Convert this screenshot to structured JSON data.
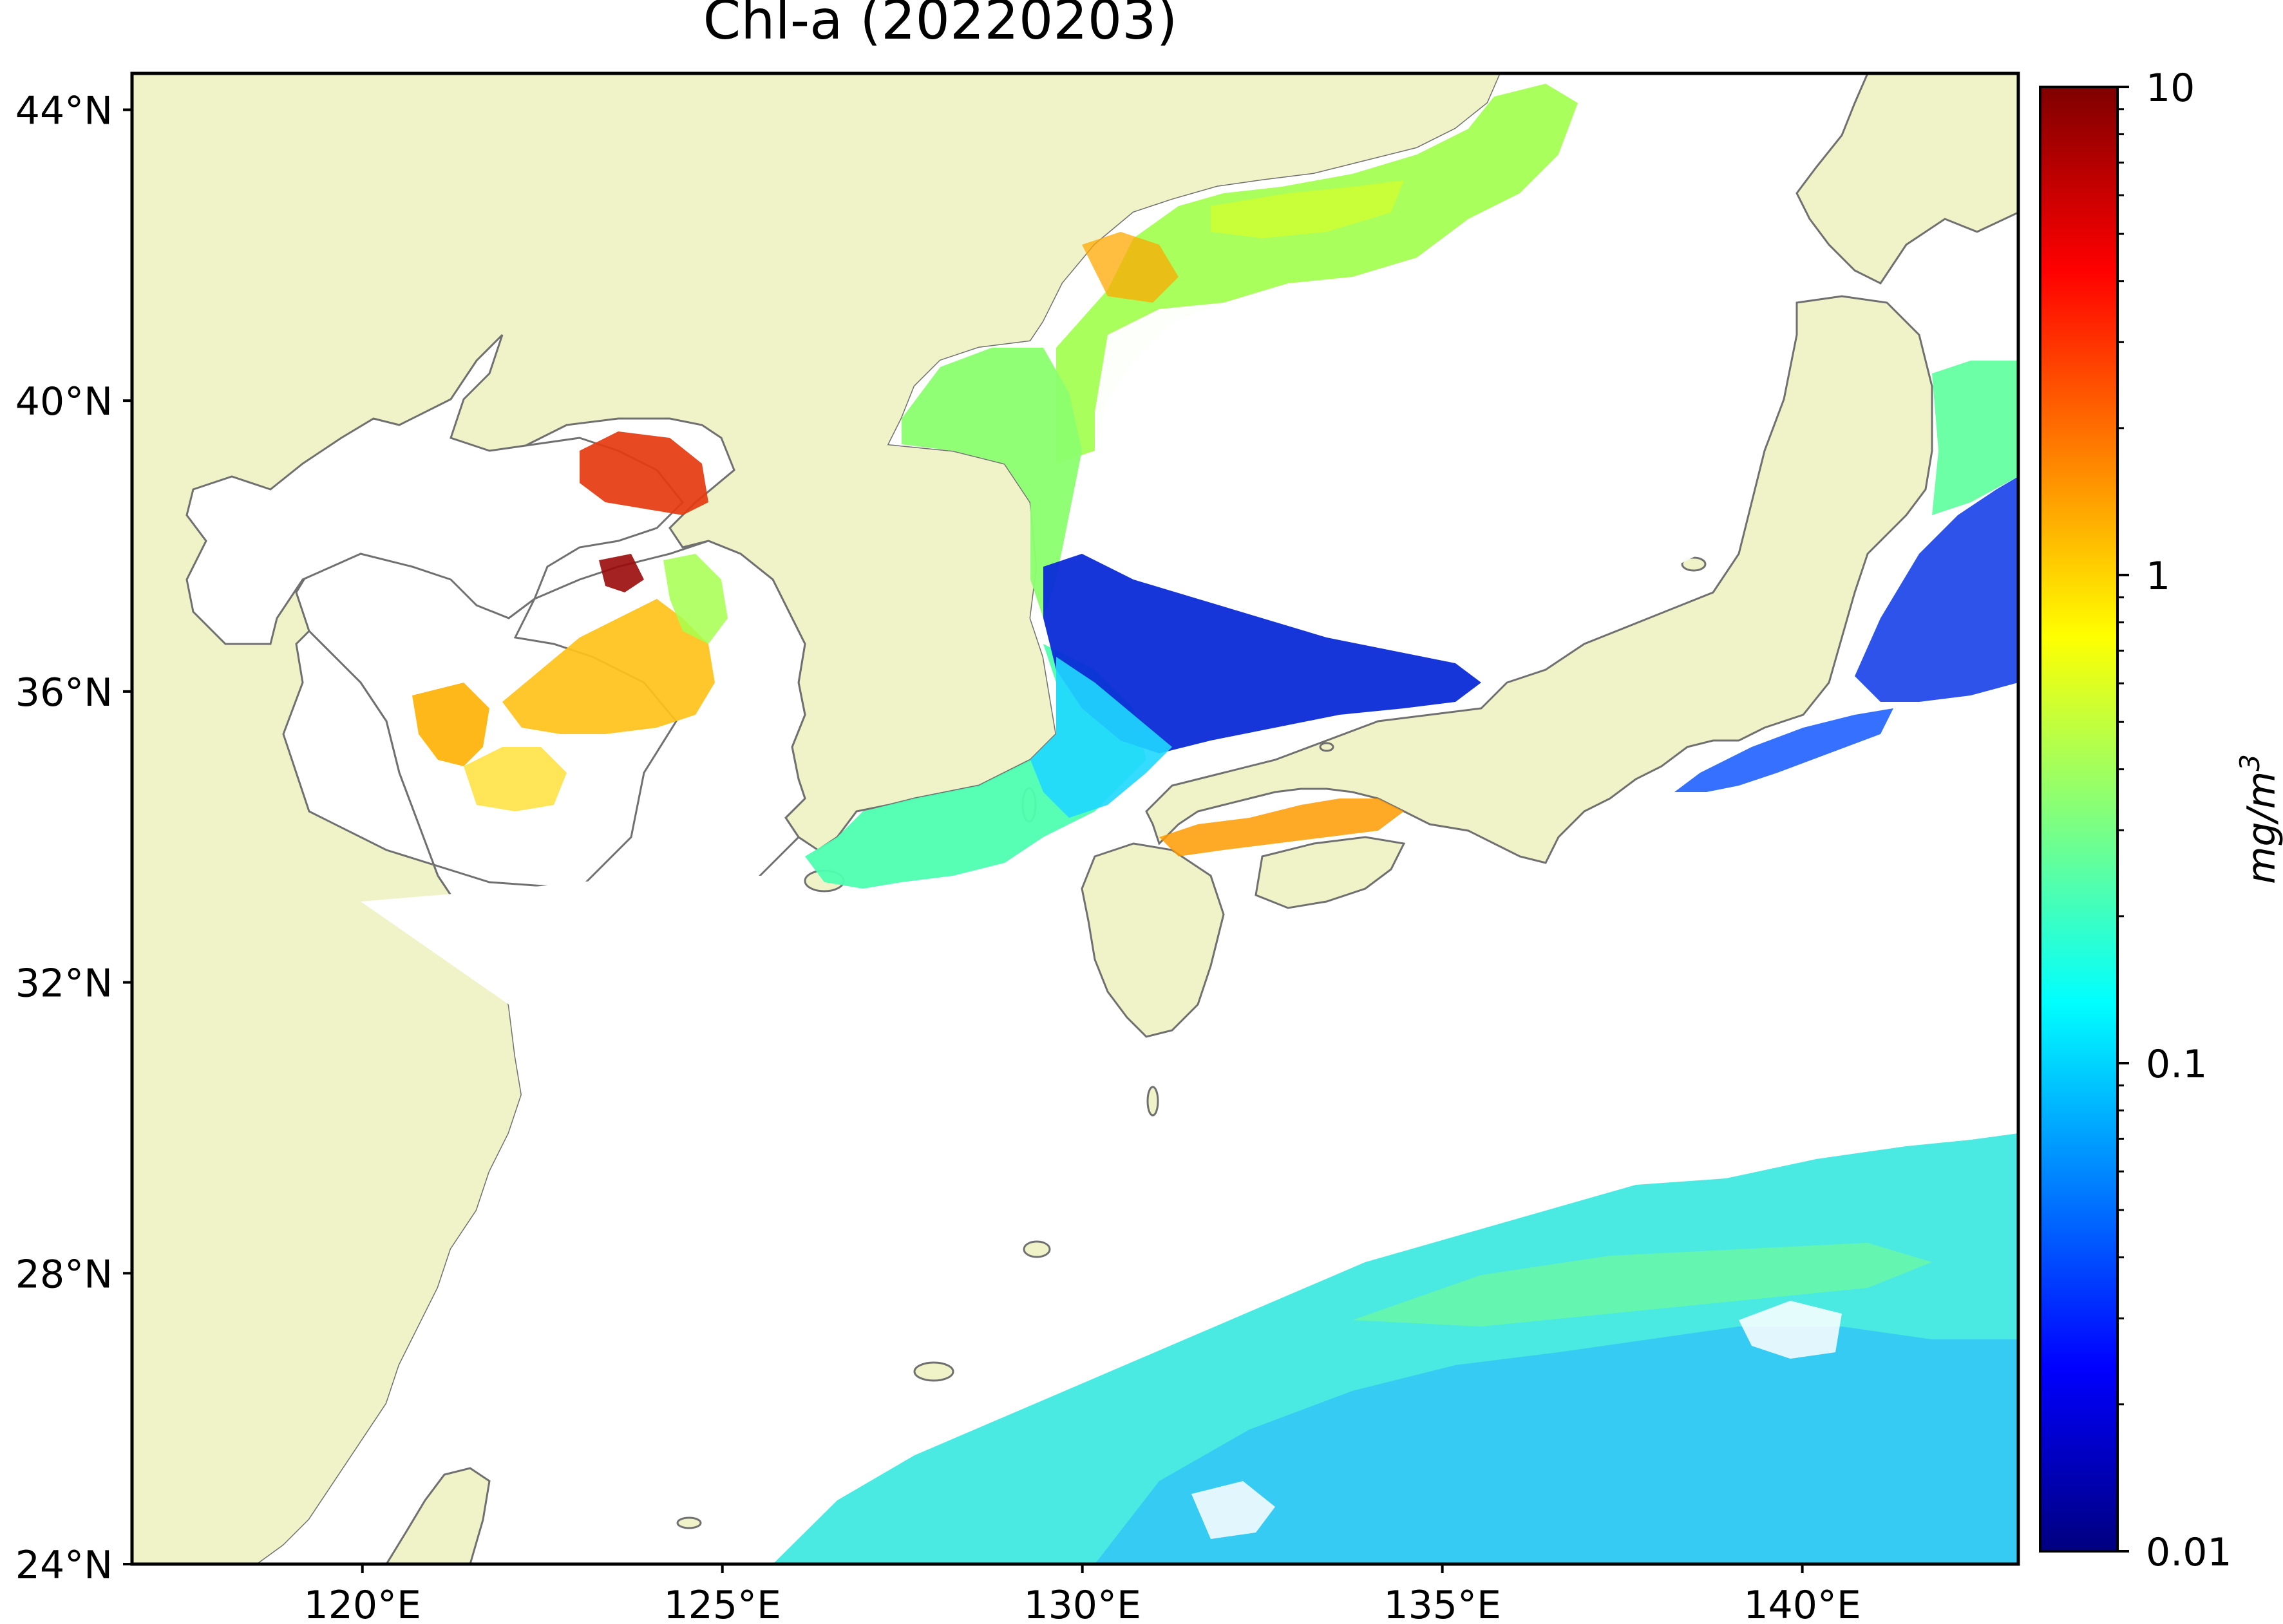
{
  "title": "Chl-a (20220203)",
  "map": {
    "lon_range": [
      116.8,
      143.0
    ],
    "lat_range": [
      24.0,
      44.5
    ],
    "lat_ticks": [
      {
        "value": 44,
        "label": "44°N"
      },
      {
        "value": 40,
        "label": "40°N"
      },
      {
        "value": 36,
        "label": "36°N"
      },
      {
        "value": 32,
        "label": "32°N"
      },
      {
        "value": 28,
        "label": "28°N"
      },
      {
        "value": 24,
        "label": "24°N"
      }
    ],
    "lon_ticks": [
      {
        "value": 120,
        "label": "120°E"
      },
      {
        "value": 125,
        "label": "125°E"
      },
      {
        "value": 130,
        "label": "130°E"
      },
      {
        "value": 135,
        "label": "135°E"
      },
      {
        "value": 140,
        "label": "140°E"
      }
    ],
    "colors": {
      "land": "#f0f2c8",
      "coastline": "#707070",
      "ocean_no_data": "#ffffff",
      "frame": "#000000"
    }
  },
  "colorbar": {
    "colormap": "jet",
    "scale": "log",
    "range": [
      0.01,
      10
    ],
    "unit_base": "mg/m",
    "unit_sup": "3",
    "ticks": [
      {
        "value": 10,
        "label": "10"
      },
      {
        "value": 1,
        "label": "1"
      },
      {
        "value": 0.1,
        "label": "0.1"
      },
      {
        "value": 0.01,
        "label": "0.01"
      }
    ],
    "stops": [
      "#00007f",
      "#0000ff",
      "#007fff",
      "#00ffff",
      "#7fff7f",
      "#ffff00",
      "#ff7f00",
      "#ff0000",
      "#7f0000"
    ]
  }
}
